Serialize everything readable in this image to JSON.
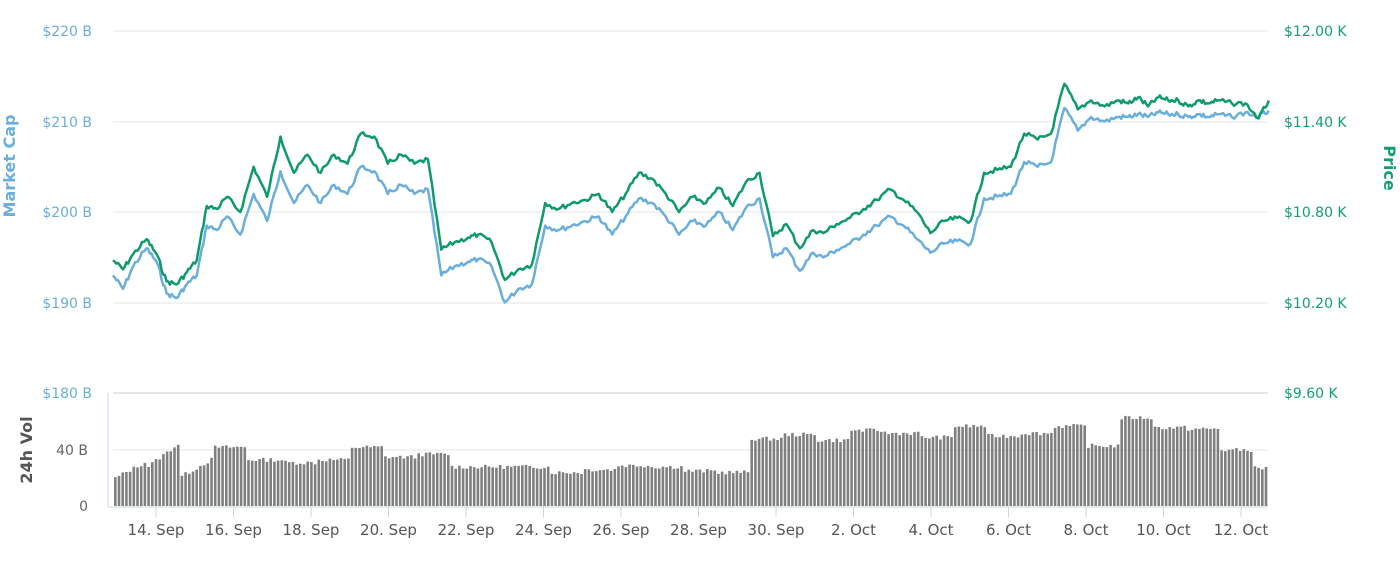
{
  "chart_data": {
    "type": "line",
    "title": "",
    "x_tick_labels": [
      "14. Sep",
      "16. Sep",
      "18. Sep",
      "20. Sep",
      "22. Sep",
      "24. Sep",
      "26. Sep",
      "28. Sep",
      "30. Sep",
      "2. Oct",
      "4. Oct",
      "6. Oct",
      "8. Oct",
      "10. Oct",
      "12. Oct"
    ],
    "x_range": [
      "12. Sep (approx)",
      "12. Oct (approx)"
    ],
    "panes": [
      {
        "name": "price-pane",
        "left_axis": {
          "title": "Market Cap",
          "ticks": [
            "$190 B",
            "$200 B",
            "$210 B",
            "$220 B"
          ],
          "range_billion_usd": [
            180,
            220
          ],
          "color": "#6aaedc"
        },
        "right_axis": {
          "title": "Price",
          "ticks": [
            "$9.60 K",
            "$10.20 K",
            "$10.80 K",
            "$11.40 K",
            "$12.00 K"
          ],
          "range_thousand_usd": [
            9.6,
            12.0
          ],
          "color": "#13a06f"
        },
        "series": [
          {
            "name": "Market Cap",
            "color": "#6aaedc",
            "axis": "left",
            "unit": "billion USD",
            "x_day": [
              0,
              0.3,
              0.6,
              1.0,
              1.3,
              1.6,
              1.9,
              2.2,
              2.5,
              2.8,
              3.1,
              3.4,
              3.8,
              4.2,
              4.6,
              5.0,
              5.4,
              5.8,
              6.2,
              6.6,
              7.0,
              7.4,
              7.8,
              8.2,
              8.6,
              9.0,
              9.4,
              9.8,
              10.2,
              10.6,
              10.9,
              11.3,
              11.7,
              12.1,
              12.5,
              12.9,
              13.3,
              13.7,
              14.1,
              14.5,
              14.9,
              15.3,
              15.7,
              16.1,
              16.5,
              16.9,
              17.3,
              17.7,
              18.1,
              18.5,
              18.9,
              19.3,
              19.7,
              20.1,
              20.5,
              20.9,
              21.2,
              21.6,
              22.0,
              22.4,
              22.8,
              23.2,
              23.6,
              24.0,
              24.4,
              24.8,
              25.2,
              25.6,
              26.0,
              26.4,
              26.8,
              27.2,
              27.6,
              28.0,
              28.4,
              28.8,
              29.2,
              29.6,
              30.0,
              30.3,
              30.6,
              30.9,
              31.2,
              31.5,
              31.8,
              32.1,
              32.4,
              32.7,
              33.0,
              33.4,
              33.8,
              34.2,
              34.5
            ],
            "values": [
              193,
              191.5,
              194,
              196,
              194.5,
              191,
              190.5,
              192,
              193,
              198.5,
              198,
              199.5,
              197.5,
              202,
              199,
              204.5,
              201,
              203,
              201,
              203,
              202,
              205,
              204.5,
              202,
              203,
              202,
              202.5,
              193,
              194,
              194.5,
              194.8,
              194,
              190,
              191.5,
              192,
              198.5,
              198,
              198.5,
              199,
              199.5,
              197.5,
              199.5,
              201.5,
              201,
              199.5,
              197.5,
              199,
              198.5,
              200,
              198,
              200.5,
              201.5,
              195,
              196,
              193.5,
              195.5,
              195,
              195.8,
              196.5,
              197.5,
              198.5,
              199.5,
              198.5,
              197,
              195.5,
              196.5,
              196.8,
              196.5,
              201.5,
              201.7,
              202,
              205.5,
              205,
              205.5,
              211.5,
              209,
              210.5,
              210,
              210.5,
              210.5,
              210.8,
              210.5,
              211,
              210.8,
              210.8,
              210.5,
              210.8,
              210.5,
              210.8,
              210.5,
              211,
              210.5,
              211.2
            ]
          },
          {
            "name": "Price",
            "color": "#0f9a6c",
            "axis": "right",
            "unit": "thousand USD",
            "x_day": [
              0,
              0.3,
              0.6,
              1.0,
              1.3,
              1.6,
              1.9,
              2.2,
              2.5,
              2.8,
              3.1,
              3.4,
              3.8,
              4.2,
              4.6,
              5.0,
              5.4,
              5.8,
              6.2,
              6.6,
              7.0,
              7.4,
              7.8,
              8.2,
              8.6,
              9.0,
              9.4,
              9.8,
              10.2,
              10.6,
              10.9,
              11.3,
              11.7,
              12.1,
              12.5,
              12.9,
              13.3,
              13.7,
              14.1,
              14.5,
              14.9,
              15.3,
              15.7,
              16.1,
              16.5,
              16.9,
              17.3,
              17.7,
              18.1,
              18.5,
              18.9,
              19.3,
              19.7,
              20.1,
              20.5,
              20.9,
              21.2,
              21.6,
              22.0,
              22.4,
              22.8,
              23.2,
              23.6,
              24.0,
              24.4,
              24.8,
              25.2,
              25.6,
              26.0,
              26.4,
              26.8,
              27.2,
              27.6,
              28.0,
              28.4,
              28.8,
              29.2,
              29.6,
              30.0,
              30.3,
              30.6,
              30.9,
              31.2,
              31.5,
              31.8,
              32.1,
              32.4,
              32.7,
              33.0,
              33.4,
              33.8,
              34.2,
              34.5
            ],
            "values": [
              10.48,
              10.42,
              10.52,
              10.62,
              10.52,
              10.34,
              10.32,
              10.4,
              10.48,
              10.84,
              10.82,
              10.9,
              10.8,
              11.1,
              10.9,
              11.3,
              11.06,
              11.18,
              11.06,
              11.18,
              11.12,
              11.32,
              11.3,
              11.12,
              11.18,
              11.12,
              11.15,
              10.55,
              10.6,
              10.63,
              10.65,
              10.6,
              10.35,
              10.42,
              10.45,
              10.86,
              10.82,
              10.86,
              10.88,
              10.92,
              10.8,
              10.92,
              11.06,
              11.02,
              10.92,
              10.8,
              10.9,
              10.86,
              10.96,
              10.84,
              11.0,
              11.06,
              10.64,
              10.72,
              10.56,
              10.68,
              10.66,
              10.72,
              10.76,
              10.82,
              10.88,
              10.95,
              10.88,
              10.8,
              10.66,
              10.74,
              10.76,
              10.74,
              11.06,
              11.08,
              11.1,
              11.32,
              11.28,
              11.32,
              11.65,
              11.48,
              11.54,
              11.5,
              11.54,
              11.52,
              11.56,
              11.5,
              11.56,
              11.54,
              11.54,
              11.5,
              11.54,
              11.52,
              11.54,
              11.52,
              11.52,
              11.42,
              11.54
            ]
          }
        ]
      },
      {
        "name": "volume-pane",
        "left_axis": {
          "title": "24h Vol",
          "ticks": [
            "0",
            "40 B"
          ],
          "range_billion_usd": [
            0,
            80
          ],
          "color": "#666666"
        },
        "series": [
          {
            "name": "24h Vol",
            "type": "bar",
            "color": "#808080",
            "unit": "billion USD",
            "x_day": [
              0,
              1,
              2,
              3,
              4,
              5,
              6,
              7,
              8,
              9,
              10,
              11,
              12,
              13,
              14,
              15,
              16,
              17,
              18,
              19,
              20,
              21,
              22,
              23,
              24,
              25,
              26,
              27,
              28,
              29,
              30,
              31,
              32,
              33,
              34
            ],
            "values": [
              28,
              40,
              30,
              42,
              33,
              31,
              33,
              42,
              35,
              37,
              28,
              28,
              28,
              24,
              26,
              29,
              28,
              25,
              24,
              48,
              51,
              47,
              54,
              52,
              49,
              57,
              50,
              52,
              57,
              43,
              63,
              56,
              55,
              40,
              27
            ]
          }
        ]
      }
    ],
    "legend": "none",
    "grid": "horizontal"
  }
}
